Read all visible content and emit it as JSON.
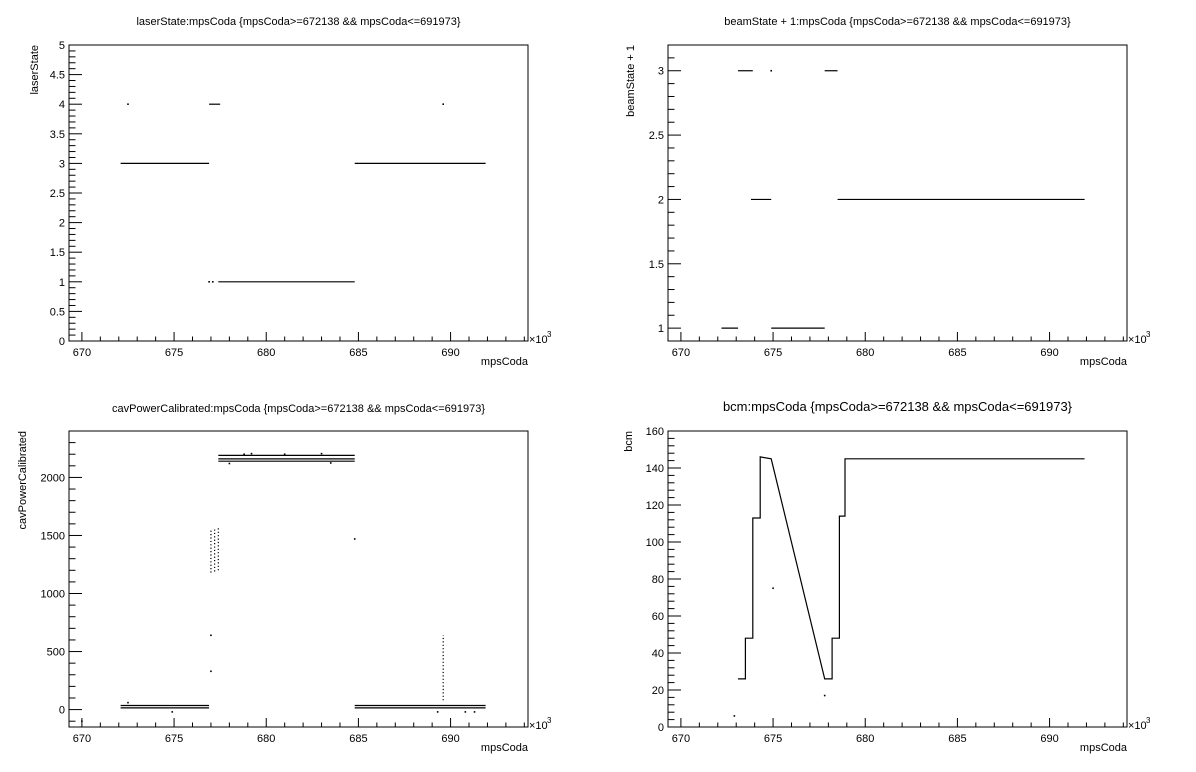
{
  "chart_data": [
    {
      "type": "scatter",
      "title": "laserState:mpsCoda {mpsCoda>=672138 && mpsCoda<=691973}",
      "xlabel": "mpsCoda",
      "ylabel": "laserState",
      "x_exponent_label": "×10",
      "x_exponent": "3",
      "xlim": [
        669.3,
        694.2
      ],
      "ylim": [
        0,
        5
      ],
      "xticks": [
        670,
        675,
        680,
        685,
        690
      ],
      "yticks": [
        0,
        0.5,
        1,
        1.5,
        2,
        2.5,
        3,
        3.5,
        4,
        4.5,
        5
      ],
      "ytick_labels": [
        "0",
        "0.5",
        "1",
        "1.5",
        "2",
        "2.5",
        "3",
        "3.5",
        "4",
        "4.5",
        "5"
      ],
      "segments": [
        {
          "x": [
            672.1,
            676.9
          ],
          "y": 3
        },
        {
          "x": [
            684.8,
            691.9
          ],
          "y": 3
        },
        {
          "x": [
            677.4,
            684.8
          ],
          "y": 1
        },
        {
          "x": [
            676.9,
            677.5
          ],
          "y": 4
        }
      ],
      "points": [
        {
          "x": 672.5,
          "y": 4
        },
        {
          "x": 689.6,
          "y": 4
        },
        {
          "x": 676.9,
          "y": 1
        },
        {
          "x": 677.1,
          "y": 1
        }
      ]
    },
    {
      "type": "scatter",
      "title": "beamState + 1:mpsCoda {mpsCoda>=672138 && mpsCoda<=691973}",
      "xlabel": "mpsCoda",
      "ylabel": "beamState + 1",
      "x_exponent_label": "×10",
      "x_exponent": "3",
      "xlim": [
        669.3,
        694.2
      ],
      "ylim": [
        0.9,
        3.2
      ],
      "xticks": [
        670,
        675,
        680,
        685,
        690
      ],
      "yticks": [
        1,
        1.5,
        2,
        2.5,
        3
      ],
      "ytick_labels": [
        "1",
        "1.5",
        "2",
        "2.5",
        "3"
      ],
      "segments": [
        {
          "x": [
            672.2,
            673.1
          ],
          "y": 1
        },
        {
          "x": [
            673.1,
            673.9
          ],
          "y": 3
        },
        {
          "x": [
            673.8,
            674.9
          ],
          "y": 2
        },
        {
          "x": [
            674.9,
            677.8
          ],
          "y": 1
        },
        {
          "x": [
            677.8,
            678.5
          ],
          "y": 3
        },
        {
          "x": [
            678.5,
            691.9
          ],
          "y": 2
        }
      ],
      "points": [
        {
          "x": 674.9,
          "y": 3
        }
      ]
    },
    {
      "type": "scatter",
      "title": "cavPowerCalibrated:mpsCoda {mpsCoda>=672138 && mpsCoda<=691973}",
      "xlabel": "mpsCoda",
      "ylabel": "cavPowerCalibrated",
      "x_exponent_label": "×10",
      "x_exponent": "3",
      "xlim": [
        669.3,
        694.2
      ],
      "ylim": [
        -150,
        2400
      ],
      "xticks": [
        670,
        675,
        680,
        685,
        690
      ],
      "yticks": [
        0,
        500,
        1000,
        1500,
        2000
      ],
      "ytick_labels": [
        "0",
        "500",
        "1000",
        "1500",
        "2000"
      ],
      "segments": [
        {
          "x": [
            672.1,
            676.9
          ],
          "y": 35
        },
        {
          "x": [
            672.1,
            676.9
          ],
          "y": 15
        },
        {
          "x": [
            684.8,
            691.9
          ],
          "y": 35
        },
        {
          "x": [
            684.8,
            691.9
          ],
          "y": 15
        },
        {
          "x": [
            677.4,
            684.8
          ],
          "y": 2190
        },
        {
          "x": [
            677.4,
            684.8
          ],
          "y": 2160
        },
        {
          "x": [
            677.4,
            684.8
          ],
          "y": 2140
        }
      ],
      "clusters": [
        {
          "x": 677.0,
          "y_from": 1180,
          "y_to": 1560
        },
        {
          "x": 677.2,
          "y_from": 1190,
          "y_to": 1570
        },
        {
          "x": 677.4,
          "y_from": 1200,
          "y_to": 1580
        },
        {
          "x": 689.6,
          "y_from": 80,
          "y_to": 640
        }
      ],
      "points": [
        {
          "x": 670.0,
          "y": -100
        },
        {
          "x": 672.5,
          "y": 60
        },
        {
          "x": 674.9,
          "y": -20
        },
        {
          "x": 677.0,
          "y": 640
        },
        {
          "x": 677.0,
          "y": 330
        },
        {
          "x": 684.8,
          "y": 1470
        },
        {
          "x": 689.3,
          "y": -20
        },
        {
          "x": 690.8,
          "y": -20
        },
        {
          "x": 691.3,
          "y": -20
        },
        {
          "x": 678.0,
          "y": 2120
        },
        {
          "x": 678.8,
          "y": 2200
        },
        {
          "x": 679.2,
          "y": 2205
        },
        {
          "x": 681.0,
          "y": 2200
        },
        {
          "x": 683.0,
          "y": 2205
        },
        {
          "x": 683.5,
          "y": 2125
        }
      ]
    },
    {
      "type": "scatter",
      "title": "bcm:mpsCoda {mpsCoda>=672138 && mpsCoda<=691973}",
      "xlabel": "mpsCoda",
      "ylabel": "bcm",
      "x_exponent_label": "×10",
      "x_exponent": "3",
      "xlim": [
        669.3,
        694.2
      ],
      "ylim": [
        0,
        160
      ],
      "xticks": [
        670,
        675,
        680,
        685,
        690
      ],
      "yticks": [
        0,
        20,
        40,
        60,
        80,
        100,
        120,
        140,
        160
      ],
      "ytick_labels": [
        "0",
        "20",
        "40",
        "60",
        "80",
        "100",
        "120",
        "140",
        "160"
      ],
      "trace": [
        [
          673.1,
          26
        ],
        [
          673.5,
          26
        ],
        [
          673.5,
          48
        ],
        [
          673.9,
          48
        ],
        [
          673.9,
          113
        ],
        [
          674.3,
          113
        ],
        [
          674.3,
          146
        ],
        [
          674.9,
          145
        ],
        [
          677.8,
          26
        ],
        [
          678.2,
          26
        ],
        [
          678.2,
          48
        ],
        [
          678.6,
          48
        ],
        [
          678.6,
          114
        ],
        [
          678.9,
          114
        ],
        [
          678.9,
          145
        ],
        [
          691.9,
          145
        ]
      ],
      "points": [
        {
          "x": 672.9,
          "y": 6
        },
        {
          "x": 675.0,
          "y": 75
        },
        {
          "x": 677.8,
          "y": 17
        }
      ]
    }
  ]
}
